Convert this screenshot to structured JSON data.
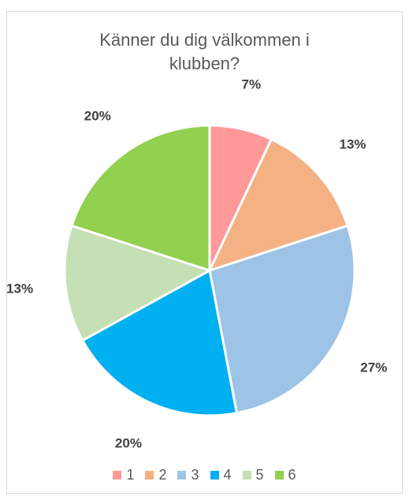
{
  "chart_data": {
    "type": "pie",
    "title_lines": [
      "Känner du dig välkommen i",
      "klubben?"
    ],
    "categories": [
      "1",
      "2",
      "3",
      "4",
      "5",
      "6"
    ],
    "values": [
      7,
      13,
      27,
      20,
      13,
      20
    ],
    "labels": [
      "7%",
      "13%",
      "27%",
      "20%",
      "13%",
      "20%"
    ],
    "colors": [
      "#ff9999",
      "#f4b183",
      "#9dc3e6",
      "#00b0f0",
      "#c5e0b4",
      "#92d050"
    ],
    "legend_position": "bottom"
  }
}
